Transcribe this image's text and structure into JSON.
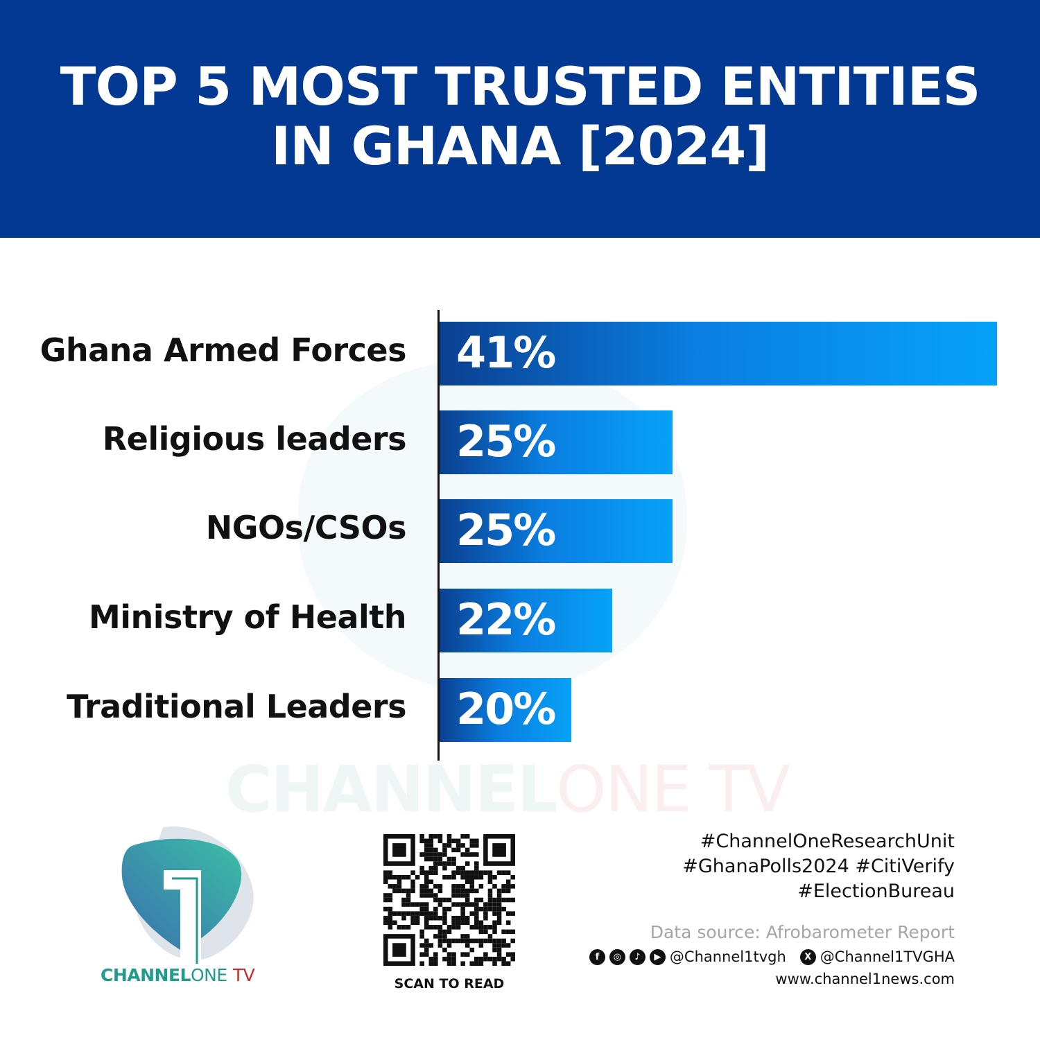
{
  "header": {
    "title_line1": "TOP 5 MOST TRUSTED ENTITIES",
    "title_line2": "IN GHANA [2024]"
  },
  "colors": {
    "header_bg": "#033993",
    "bar_dark": "#0b3f90",
    "bar_light": "#07a2f7",
    "brand_teal": "#1f9c8d",
    "brand_red": "#c8282e"
  },
  "chart_data": {
    "type": "bar",
    "orientation": "horizontal",
    "title": "TOP 5 MOST TRUSTED ENTITIES IN GHANA [2024]",
    "categories": [
      "Ghana Armed Forces",
      "Religious leaders",
      "NGOs/CSOs",
      "Ministry of Health",
      "Traditional Leaders"
    ],
    "values": [
      41,
      25,
      25,
      22,
      20
    ],
    "value_labels": [
      "41%",
      "25%",
      "25%",
      "22%",
      "20%"
    ],
    "xlim": [
      13.5,
      41
    ],
    "grid": false
  },
  "watermark": {
    "part1": "CHANNEL",
    "part2": "ONE TV"
  },
  "logo": {
    "bold": "CHANNEL",
    "light": "ONE",
    "tv": "TV"
  },
  "qr": {
    "caption": "SCAN TO READ"
  },
  "footer": {
    "hashtags": [
      "#ChannelOneResearchUnit",
      "#GhanaPolls2024 #CitiVerify",
      "#ElectionBureau"
    ],
    "source": "Data source: Afrobarometer Report",
    "social_handle": "@Channel1tvgh",
    "x_handle": "@Channel1TVGHA",
    "website": "www.channel1news.com",
    "social_icons": [
      "facebook-icon",
      "instagram-icon",
      "tiktok-icon",
      "youtube-icon",
      "x-icon"
    ]
  }
}
